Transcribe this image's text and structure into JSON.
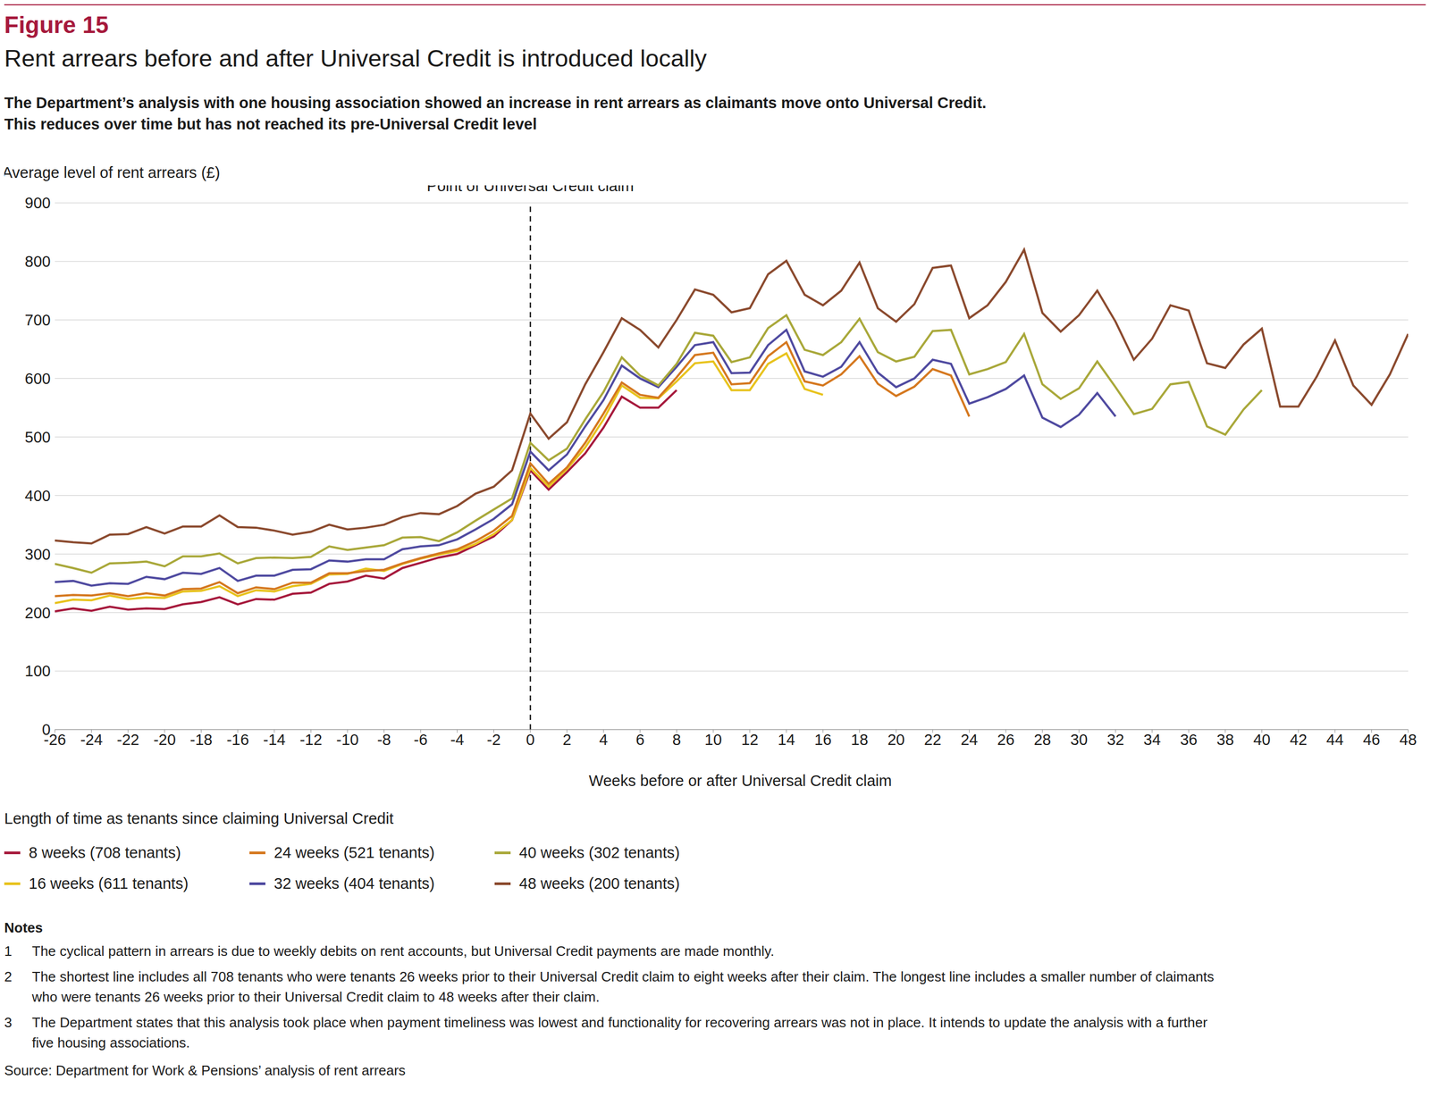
{
  "chart_data": {
    "type": "line",
    "figure_label": "Figure 15",
    "title": "Rent arrears before and after Universal Credit is introduced locally",
    "subtitle": [
      "The Department’s analysis with one housing association showed an increase in rent arrears as claimants move onto Universal Credit.",
      "This reduces over time but has not reached its pre-Universal Credit level"
    ],
    "y_label": "Average level of rent arrears (£)",
    "x_label": "Weeks before or after Universal Credit claim",
    "annotation": {
      "text": "Point of Universal Credit claim",
      "x": 0,
      "line_style": "dashed"
    },
    "legend_title": "Length of time as tenants since claiming Universal Credit",
    "legend": "bottom",
    "grid": true,
    "xlim": [
      -26,
      48
    ],
    "xticks": [
      -26,
      -24,
      -22,
      -20,
      -18,
      -16,
      -14,
      -12,
      -10,
      -8,
      -6,
      -4,
      -2,
      0,
      2,
      4,
      6,
      8,
      10,
      12,
      14,
      16,
      18,
      20,
      22,
      24,
      26,
      28,
      30,
      32,
      34,
      36,
      38,
      40,
      42,
      44,
      46,
      48
    ],
    "ylim": [
      0,
      900
    ],
    "yticks": [
      0,
      100,
      200,
      300,
      400,
      500,
      600,
      700,
      800,
      900
    ],
    "x": [
      -26,
      -25,
      -24,
      -23,
      -22,
      -21,
      -20,
      -19,
      -18,
      -17,
      -16,
      -15,
      -14,
      -13,
      -12,
      -11,
      -10,
      -9,
      -8,
      -7,
      -6,
      -5,
      -4,
      -3,
      -2,
      -1,
      0,
      1,
      2,
      3,
      4,
      5,
      6,
      7,
      8,
      9,
      10,
      11,
      12,
      13,
      14,
      15,
      16,
      17,
      18,
      19,
      20,
      21,
      22,
      23,
      24,
      25,
      26,
      27,
      28,
      29,
      30,
      31,
      32,
      33,
      34,
      35,
      36,
      37,
      38,
      39,
      40,
      41,
      42,
      43,
      44,
      45,
      46,
      47,
      48
    ],
    "series": [
      {
        "name": "8 weeks (708 tenants)",
        "color": "#a6193c",
        "values": [
          202,
          207,
          203,
          210,
          205,
          207,
          206,
          214,
          218,
          226,
          214,
          223,
          222,
          232,
          234,
          249,
          253,
          263,
          258,
          276,
          285,
          294,
          300,
          315,
          330,
          358,
          443,
          410,
          440,
          472,
          516,
          569,
          550,
          550,
          580,
          null,
          null,
          null,
          null,
          null,
          null,
          null,
          null,
          null,
          null,
          null,
          null,
          null,
          null,
          null,
          null,
          null,
          null,
          null,
          null,
          null,
          null,
          null,
          null,
          null,
          null,
          null,
          null,
          null,
          null,
          null,
          null,
          null,
          null,
          null,
          null,
          null,
          null,
          null,
          null
        ]
      },
      {
        "name": "16 weeks (611 tenants)",
        "color": "#e8c31e",
        "values": [
          216,
          222,
          221,
          229,
          223,
          226,
          225,
          236,
          237,
          245,
          228,
          238,
          236,
          245,
          249,
          265,
          266,
          275,
          271,
          283,
          292,
          299,
          305,
          317,
          334,
          358,
          447,
          415,
          445,
          482,
          530,
          588,
          567,
          566,
          595,
          626,
          629,
          580,
          580,
          625,
          643,
          582,
          572,
          null,
          null,
          null,
          null,
          null,
          null,
          null,
          null,
          null,
          null,
          null,
          null,
          null,
          null,
          null,
          null,
          null,
          null,
          null,
          null,
          null,
          null,
          null,
          null,
          null,
          null,
          null,
          null,
          null,
          null,
          null,
          null
        ]
      },
      {
        "name": "24 weeks (521 tenants)",
        "color": "#d5781f",
        "values": [
          228,
          230,
          229,
          233,
          228,
          233,
          229,
          240,
          241,
          252,
          233,
          243,
          240,
          251,
          251,
          267,
          267,
          271,
          273,
          284,
          293,
          301,
          308,
          322,
          340,
          365,
          455,
          420,
          448,
          490,
          540,
          593,
          572,
          567,
          602,
          640,
          644,
          590,
          592,
          638,
          662,
          595,
          588,
          607,
          638,
          591,
          570,
          586,
          616,
          605,
          535,
          null,
          null,
          null,
          null,
          null,
          null,
          null,
          null,
          null,
          null,
          null,
          null,
          null,
          null,
          null,
          null,
          null,
          null,
          null,
          null,
          null,
          null,
          null,
          null
        ]
      },
      {
        "name": "32 weeks (404 tenants)",
        "color": "#4f4aa0",
        "values": [
          252,
          254,
          246,
          250,
          249,
          261,
          257,
          268,
          266,
          276,
          254,
          263,
          263,
          273,
          274,
          289,
          287,
          291,
          291,
          308,
          313,
          315,
          325,
          342,
          360,
          385,
          475,
          443,
          470,
          518,
          563,
          622,
          600,
          585,
          620,
          657,
          662,
          609,
          610,
          657,
          683,
          612,
          603,
          620,
          662,
          610,
          585,
          600,
          632,
          625,
          557,
          568,
          582,
          605,
          533,
          517,
          538,
          575,
          535,
          null,
          null,
          null,
          null,
          null,
          null,
          null,
          null,
          null,
          null,
          null,
          null,
          null,
          null,
          null,
          null
        ]
      },
      {
        "name": "40 weeks (302 tenants)",
        "color": "#a9a83a",
        "values": [
          283,
          276,
          268,
          284,
          285,
          287,
          279,
          296,
          296,
          301,
          284,
          293,
          294,
          293,
          295,
          313,
          307,
          311,
          315,
          328,
          329,
          322,
          337,
          357,
          376,
          395,
          490,
          460,
          480,
          530,
          577,
          636,
          605,
          588,
          625,
          678,
          673,
          628,
          636,
          686,
          708,
          649,
          640,
          662,
          702,
          645,
          629,
          637,
          681,
          683,
          607,
          616,
          628,
          676,
          590,
          565,
          583,
          629,
          585,
          539,
          548,
          590,
          594,
          518,
          504,
          547,
          580,
          null,
          null,
          null,
          null,
          null,
          null,
          null,
          null
        ]
      },
      {
        "name": "48 weeks (200 tenants)",
        "color": "#8b4a2e",
        "values": [
          323,
          320,
          318,
          333,
          334,
          346,
          335,
          347,
          347,
          366,
          346,
          345,
          340,
          333,
          338,
          350,
          342,
          345,
          350,
          363,
          370,
          368,
          382,
          403,
          415,
          443,
          540,
          497,
          525,
          590,
          645,
          703,
          683,
          653,
          700,
          752,
          743,
          713,
          720,
          778,
          801,
          743,
          725,
          750,
          798,
          720,
          697,
          727,
          789,
          793,
          703,
          725,
          765,
          820,
          712,
          680,
          708,
          750,
          697,
          632,
          668,
          725,
          716,
          626,
          618,
          658,
          685,
          552,
          552,
          603,
          665,
          588,
          555,
          607,
          676
        ]
      }
    ],
    "notes_heading": "Notes",
    "notes": [
      {
        "number": 1,
        "text": "The cyclical pattern in arrears is due to weekly debits on rent accounts, but Universal Credit payments are made monthly."
      },
      {
        "number": 2,
        "text": "The shortest line includes all 708 tenants who were tenants 26 weeks prior to their Universal Credit claim to eight weeks after their claim. The longest line includes a smaller number of claimants who were tenants 26 weeks prior to their Universal Credit claim to 48 weeks after their claim."
      },
      {
        "number": 3,
        "text": "The Department states that this analysis took place when payment timeliness was lowest and functionality for recovering arrears was not in place. It intends to update the analysis with a further five housing associations."
      }
    ],
    "source": "Source: Department for Work & Pensions’ analysis of rent arrears"
  }
}
